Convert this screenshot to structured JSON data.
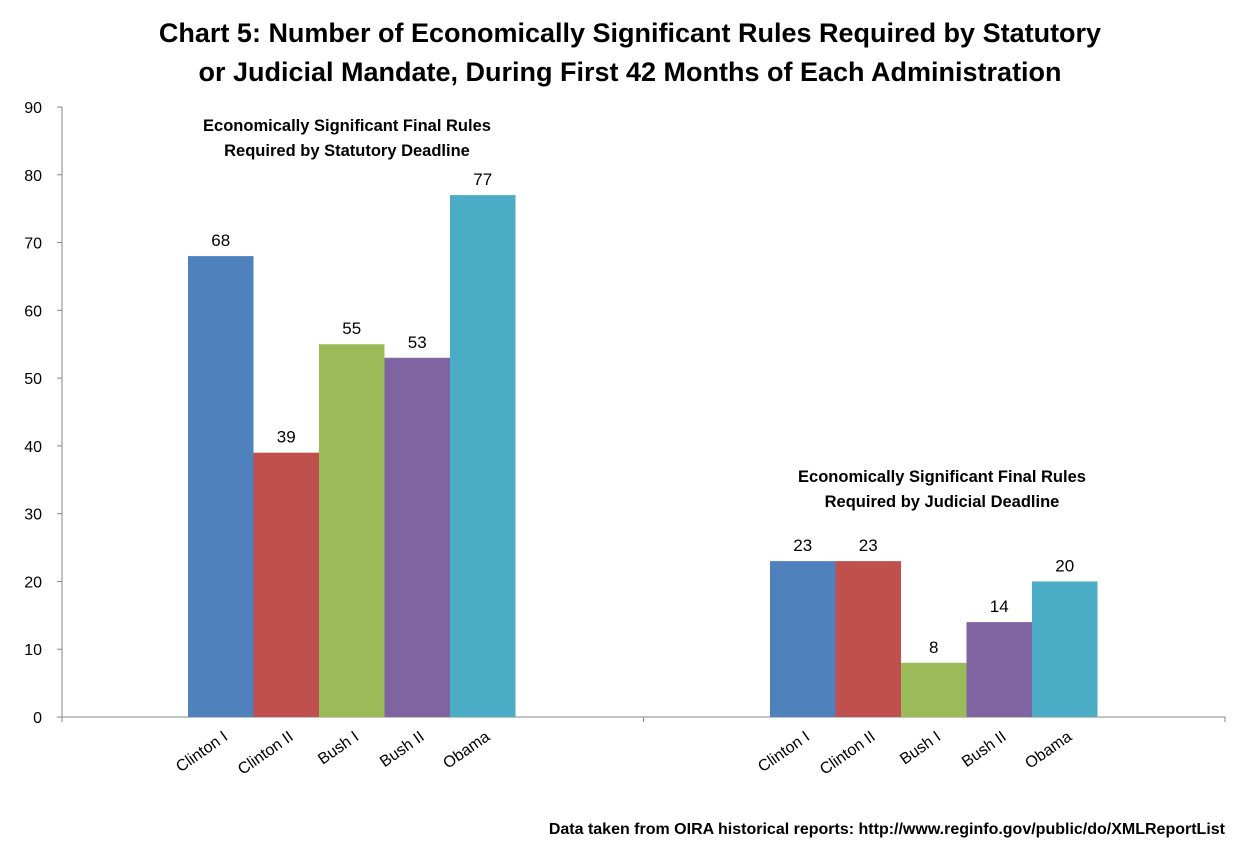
{
  "chart_data": {
    "type": "bar",
    "title_lines": [
      "Chart 5: Number of Economically Significant Rules Required by Statutory",
      "or Judicial Mandate, During First 42 Months of Each Administration"
    ],
    "ylim": [
      0,
      90
    ],
    "yticks": [
      0,
      10,
      20,
      30,
      40,
      50,
      60,
      70,
      80,
      90
    ],
    "grid": false,
    "legend": "none",
    "footnote": "Data taken from OIRA historical reports: http://www.reginfo.gov/public/do/XMLReportList",
    "administrations": [
      "Clinton I",
      "Clinton II",
      "Bush I",
      "Bush II",
      "Obama"
    ],
    "colors": [
      "#4f81bd",
      "#c0504d",
      "#9bbb59",
      "#8064a2",
      "#4bacc6"
    ],
    "groups": [
      {
        "label_lines": [
          "Economically Significant Final Rules",
          "Required by Statutory Deadline"
        ],
        "values": [
          68,
          39,
          55,
          53,
          77
        ]
      },
      {
        "label_lines": [
          "Economically Significant Final Rules",
          "Required by Judicial Deadline"
        ],
        "values": [
          23,
          23,
          8,
          14,
          20
        ]
      }
    ]
  }
}
